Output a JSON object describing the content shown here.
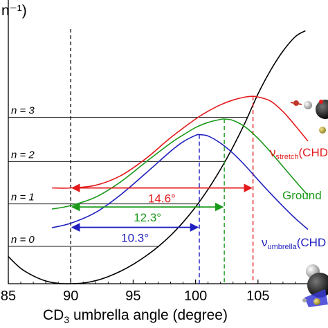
{
  "chart_data": {
    "type": "line",
    "title": "",
    "ylabel_fragment": "n⁻¹)",
    "xlabel": {
      "prefix": "CD",
      "sub": "3",
      "rest": " umbrella angle (degree)"
    },
    "xlim": [
      85,
      109
    ],
    "ylim": [
      -0.4,
      7.1
    ],
    "x_ticks": [
      85,
      90,
      95,
      100,
      105
    ],
    "x_ticks_labels": [
      "85",
      "90",
      "95",
      "100",
      "105"
    ],
    "grid": false,
    "levels": [
      {
        "label": "n = 0",
        "y": 0.7
      },
      {
        "label": "n = 1",
        "y": 1.95
      },
      {
        "label": "n = 2",
        "y": 3.2
      },
      {
        "label": "n = 3",
        "y": 4.5
      }
    ],
    "potential_curve": {
      "minimum_x": 90,
      "minimum_y": -0.4,
      "x": [
        85,
        86,
        87,
        88,
        89,
        90,
        91,
        92,
        93,
        94,
        95,
        96,
        97,
        98,
        99,
        100,
        101,
        102,
        103,
        104,
        105,
        106,
        107,
        108,
        108.8
      ],
      "y": [
        0.4,
        0.05,
        -0.17,
        -0.32,
        -0.39,
        -0.4,
        -0.38,
        -0.31,
        -0.19,
        -0.03,
        0.17,
        0.41,
        0.69,
        1.02,
        1.41,
        1.86,
        2.38,
        2.97,
        3.63,
        4.37,
        5.19,
        5.88,
        6.45,
        6.88,
        7.05
      ]
    },
    "series": [
      {
        "name": "",
        "label_main": "ν",
        "label_sub": "stretch",
        "label_rest": "(CHD",
        "color": "#e41a1c",
        "peak_x": 104.6,
        "x": [
          88.5,
          90,
          92,
          94,
          96,
          98,
          100,
          101,
          102,
          103,
          104,
          104.6,
          105,
          106,
          107,
          108,
          109
        ],
        "y": [
          2.42,
          2.42,
          2.5,
          2.78,
          3.28,
          3.9,
          4.45,
          4.68,
          4.87,
          5.01,
          5.1,
          5.12,
          5.1,
          4.98,
          4.67,
          4.25,
          3.8
        ]
      },
      {
        "name": "",
        "label_main": "Ground",
        "label_sub": "",
        "label_rest": "",
        "color": "#1a9a1a",
        "peak_x": 102.3,
        "x": [
          88.5,
          90,
          92,
          94,
          96,
          98,
          99,
          100,
          101,
          102,
          102.3,
          103,
          104,
          105,
          106,
          107,
          108,
          109
        ],
        "y": [
          1.8,
          1.9,
          2.15,
          2.6,
          3.18,
          3.74,
          3.98,
          4.2,
          4.35,
          4.44,
          4.45,
          4.41,
          4.21,
          3.88,
          3.48,
          3.05,
          2.62,
          2.2
        ]
      },
      {
        "name": "",
        "label_main": "ν",
        "label_sub": "umbrella",
        "label_rest": "(CHD",
        "color": "#1f1fbf",
        "peak_x": 100.3,
        "x": [
          88.5,
          90,
          92,
          94,
          96,
          98,
          99,
          100,
          100.3,
          101,
          102,
          103,
          104,
          105,
          106,
          107,
          108,
          109
        ],
        "y": [
          1.25,
          1.38,
          1.7,
          2.22,
          2.85,
          3.5,
          3.78,
          3.97,
          3.99,
          3.95,
          3.74,
          3.44,
          3.07,
          2.66,
          2.26,
          1.88,
          1.52,
          1.2
        ]
      }
    ],
    "arrows": [
      {
        "label": "14.6°",
        "y": 2.42,
        "x_from": 90,
        "x_to": 104.6,
        "color": "#e41a1c"
      },
      {
        "label": "12.3°",
        "y": 1.86,
        "x_from": 90,
        "x_to": 102.3,
        "color": "#1a9a1a"
      },
      {
        "label": "10.3°",
        "y": 1.26,
        "x_from": 90,
        "x_to": 100.3,
        "color": "#1f1fbf"
      }
    ],
    "reference_line": {
      "x": 90,
      "color": "#000000"
    }
  }
}
